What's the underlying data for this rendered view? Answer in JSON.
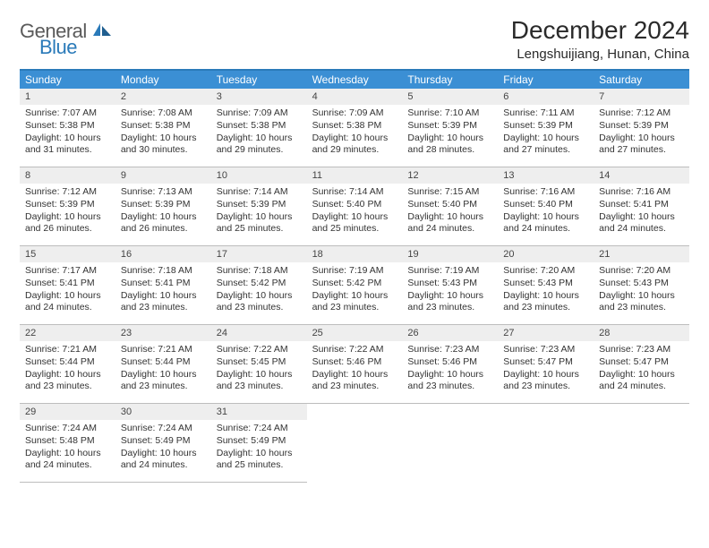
{
  "logo": {
    "word1": "General",
    "word2": "Blue"
  },
  "title": "December 2024",
  "location": "Lengshuijiang, Hunan, China",
  "colors": {
    "header_bar": "#3b8fd4",
    "accent_border": "#2a7ab9",
    "daynum_bg": "#eeeeee",
    "cell_border": "#bdbdbd",
    "logo_blue": "#2a7ab9",
    "logo_gray": "#5a5a5a",
    "text": "#333333"
  },
  "weekdays": [
    "Sunday",
    "Monday",
    "Tuesday",
    "Wednesday",
    "Thursday",
    "Friday",
    "Saturday"
  ],
  "days": [
    {
      "n": 1,
      "sunrise": "7:07 AM",
      "sunset": "5:38 PM",
      "dl": "10 hours and 31 minutes."
    },
    {
      "n": 2,
      "sunrise": "7:08 AM",
      "sunset": "5:38 PM",
      "dl": "10 hours and 30 minutes."
    },
    {
      "n": 3,
      "sunrise": "7:09 AM",
      "sunset": "5:38 PM",
      "dl": "10 hours and 29 minutes."
    },
    {
      "n": 4,
      "sunrise": "7:09 AM",
      "sunset": "5:38 PM",
      "dl": "10 hours and 29 minutes."
    },
    {
      "n": 5,
      "sunrise": "7:10 AM",
      "sunset": "5:39 PM",
      "dl": "10 hours and 28 minutes."
    },
    {
      "n": 6,
      "sunrise": "7:11 AM",
      "sunset": "5:39 PM",
      "dl": "10 hours and 27 minutes."
    },
    {
      "n": 7,
      "sunrise": "7:12 AM",
      "sunset": "5:39 PM",
      "dl": "10 hours and 27 minutes."
    },
    {
      "n": 8,
      "sunrise": "7:12 AM",
      "sunset": "5:39 PM",
      "dl": "10 hours and 26 minutes."
    },
    {
      "n": 9,
      "sunrise": "7:13 AM",
      "sunset": "5:39 PM",
      "dl": "10 hours and 26 minutes."
    },
    {
      "n": 10,
      "sunrise": "7:14 AM",
      "sunset": "5:39 PM",
      "dl": "10 hours and 25 minutes."
    },
    {
      "n": 11,
      "sunrise": "7:14 AM",
      "sunset": "5:40 PM",
      "dl": "10 hours and 25 minutes."
    },
    {
      "n": 12,
      "sunrise": "7:15 AM",
      "sunset": "5:40 PM",
      "dl": "10 hours and 24 minutes."
    },
    {
      "n": 13,
      "sunrise": "7:16 AM",
      "sunset": "5:40 PM",
      "dl": "10 hours and 24 minutes."
    },
    {
      "n": 14,
      "sunrise": "7:16 AM",
      "sunset": "5:41 PM",
      "dl": "10 hours and 24 minutes."
    },
    {
      "n": 15,
      "sunrise": "7:17 AM",
      "sunset": "5:41 PM",
      "dl": "10 hours and 24 minutes."
    },
    {
      "n": 16,
      "sunrise": "7:18 AM",
      "sunset": "5:41 PM",
      "dl": "10 hours and 23 minutes."
    },
    {
      "n": 17,
      "sunrise": "7:18 AM",
      "sunset": "5:42 PM",
      "dl": "10 hours and 23 minutes."
    },
    {
      "n": 18,
      "sunrise": "7:19 AM",
      "sunset": "5:42 PM",
      "dl": "10 hours and 23 minutes."
    },
    {
      "n": 19,
      "sunrise": "7:19 AM",
      "sunset": "5:43 PM",
      "dl": "10 hours and 23 minutes."
    },
    {
      "n": 20,
      "sunrise": "7:20 AM",
      "sunset": "5:43 PM",
      "dl": "10 hours and 23 minutes."
    },
    {
      "n": 21,
      "sunrise": "7:20 AM",
      "sunset": "5:43 PM",
      "dl": "10 hours and 23 minutes."
    },
    {
      "n": 22,
      "sunrise": "7:21 AM",
      "sunset": "5:44 PM",
      "dl": "10 hours and 23 minutes."
    },
    {
      "n": 23,
      "sunrise": "7:21 AM",
      "sunset": "5:44 PM",
      "dl": "10 hours and 23 minutes."
    },
    {
      "n": 24,
      "sunrise": "7:22 AM",
      "sunset": "5:45 PM",
      "dl": "10 hours and 23 minutes."
    },
    {
      "n": 25,
      "sunrise": "7:22 AM",
      "sunset": "5:46 PM",
      "dl": "10 hours and 23 minutes."
    },
    {
      "n": 26,
      "sunrise": "7:23 AM",
      "sunset": "5:46 PM",
      "dl": "10 hours and 23 minutes."
    },
    {
      "n": 27,
      "sunrise": "7:23 AM",
      "sunset": "5:47 PM",
      "dl": "10 hours and 23 minutes."
    },
    {
      "n": 28,
      "sunrise": "7:23 AM",
      "sunset": "5:47 PM",
      "dl": "10 hours and 24 minutes."
    },
    {
      "n": 29,
      "sunrise": "7:24 AM",
      "sunset": "5:48 PM",
      "dl": "10 hours and 24 minutes."
    },
    {
      "n": 30,
      "sunrise": "7:24 AM",
      "sunset": "5:49 PM",
      "dl": "10 hours and 24 minutes."
    },
    {
      "n": 31,
      "sunrise": "7:24 AM",
      "sunset": "5:49 PM",
      "dl": "10 hours and 25 minutes."
    }
  ],
  "labels": {
    "sunrise": "Sunrise:",
    "sunset": "Sunset:",
    "daylight": "Daylight:"
  },
  "grid": {
    "first_weekday_index": 0,
    "columns": 7,
    "rows": 5
  },
  "typography": {
    "title_fontsize": 28,
    "location_fontsize": 15,
    "weekday_fontsize": 12,
    "daynum_fontsize": 11,
    "body_fontsize": 10.5
  }
}
